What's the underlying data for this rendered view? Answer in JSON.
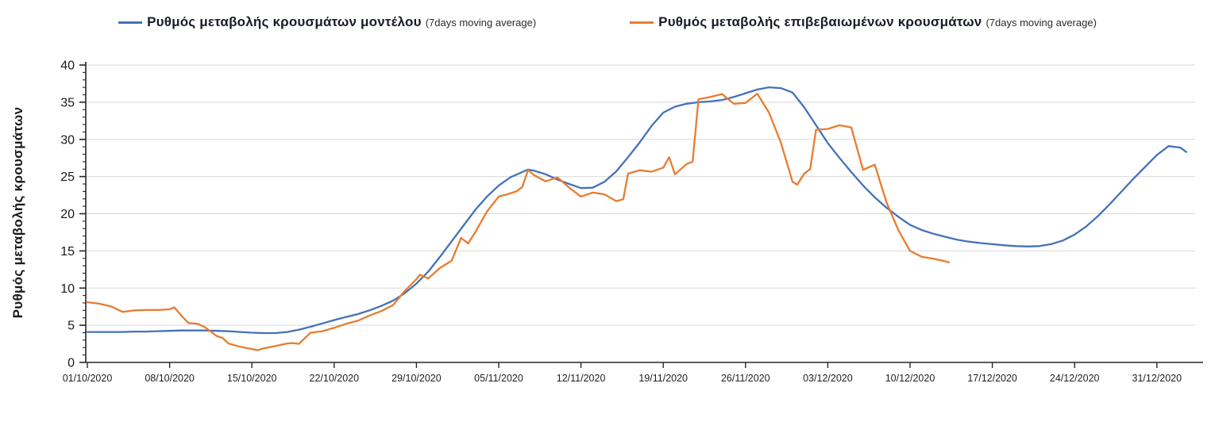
{
  "legend": {
    "items": [
      {
        "label": "Ρυθμός μεταβολής κρουσμάτων μοντέλου",
        "suffix": "(7days moving average)",
        "color": "#4472b8"
      },
      {
        "label": "Ρυθμός μεταβολής επιβεβαιωμένων κρουσμάτων",
        "suffix": "(7days moving average)",
        "color": "#e87c30"
      }
    ]
  },
  "y_axis": {
    "title": "Ρυθμός μεταβολής κρουσμάτων",
    "min": 0,
    "max": 40,
    "major_step": 5,
    "minor_step": 1,
    "tick_labels": [
      "0",
      "5",
      "10",
      "15",
      "20",
      "25",
      "30",
      "35",
      "40"
    ]
  },
  "x_axis": {
    "tick_labels": [
      "01/10/2020",
      "08/10/2020",
      "15/10/2020",
      "22/10/2020",
      "29/10/2020",
      "05/11/2020",
      "12/11/2020",
      "19/11/2020",
      "26/11/2020",
      "03/12/2020",
      "10/12/2020",
      "17/12/2020",
      "24/12/2020",
      "31/12/2020"
    ],
    "tick_day_offsets": [
      0,
      7,
      14,
      21,
      28,
      35,
      42,
      49,
      56,
      63,
      70,
      77,
      84,
      91
    ]
  },
  "chart_data": {
    "type": "line",
    "title": "",
    "xlabel": "",
    "ylabel": "Ρυθμός μεταβολής κρουσμάτων",
    "x_unit": "days since 01/10/2020",
    "ylim": [
      0,
      40
    ],
    "grid": "horizontal",
    "legend_position": "top",
    "series": [
      {
        "name": "Ρυθμός μεταβολής κρουσμάτων μοντέλου (7days moving average)",
        "color": "#4472b8",
        "points": [
          [
            0,
            4.1
          ],
          [
            1,
            4.1
          ],
          [
            2,
            4.1
          ],
          [
            3,
            4.1
          ],
          [
            4,
            4.15
          ],
          [
            5,
            4.15
          ],
          [
            6,
            4.2
          ],
          [
            7,
            4.25
          ],
          [
            8,
            4.3
          ],
          [
            9,
            4.3
          ],
          [
            10,
            4.3
          ],
          [
            11,
            4.25
          ],
          [
            12,
            4.2
          ],
          [
            13,
            4.1
          ],
          [
            14,
            4.0
          ],
          [
            15,
            3.95
          ],
          [
            16,
            3.95
          ],
          [
            17,
            4.1
          ],
          [
            18,
            4.4
          ],
          [
            19,
            4.8
          ],
          [
            20,
            5.25
          ],
          [
            21,
            5.7
          ],
          [
            22,
            6.1
          ],
          [
            23,
            6.5
          ],
          [
            24,
            7.0
          ],
          [
            25,
            7.6
          ],
          [
            26,
            8.3
          ],
          [
            27,
            9.3
          ],
          [
            28,
            10.6
          ],
          [
            29,
            12.2
          ],
          [
            30,
            14.2
          ],
          [
            31,
            16.3
          ],
          [
            32,
            18.4
          ],
          [
            33,
            20.5
          ],
          [
            34,
            22.3
          ],
          [
            35,
            23.8
          ],
          [
            36,
            24.9
          ],
          [
            37,
            25.6
          ],
          [
            37.5,
            25.95
          ],
          [
            38,
            25.8
          ],
          [
            39,
            25.3
          ],
          [
            40,
            24.6
          ],
          [
            41,
            24.0
          ],
          [
            42,
            23.45
          ],
          [
            43,
            23.5
          ],
          [
            44,
            24.3
          ],
          [
            45,
            25.7
          ],
          [
            46,
            27.6
          ],
          [
            47,
            29.6
          ],
          [
            48,
            31.8
          ],
          [
            49,
            33.6
          ],
          [
            50,
            34.4
          ],
          [
            51,
            34.8
          ],
          [
            52,
            35.0
          ],
          [
            53,
            35.1
          ],
          [
            54,
            35.3
          ],
          [
            55,
            35.7
          ],
          [
            56,
            36.2
          ],
          [
            57,
            36.7
          ],
          [
            58,
            37.0
          ],
          [
            59,
            36.9
          ],
          [
            60,
            36.3
          ],
          [
            61,
            34.3
          ],
          [
            62,
            31.9
          ],
          [
            63,
            29.5
          ],
          [
            64,
            27.5
          ],
          [
            65,
            25.6
          ],
          [
            66,
            23.8
          ],
          [
            67,
            22.2
          ],
          [
            68,
            20.8
          ],
          [
            69,
            19.6
          ],
          [
            70,
            18.5
          ],
          [
            71,
            17.8
          ],
          [
            72,
            17.3
          ],
          [
            73,
            16.9
          ],
          [
            74,
            16.5
          ],
          [
            75,
            16.25
          ],
          [
            76,
            16.05
          ],
          [
            77,
            15.9
          ],
          [
            78,
            15.75
          ],
          [
            79,
            15.65
          ],
          [
            80,
            15.6
          ],
          [
            81,
            15.65
          ],
          [
            82,
            15.9
          ],
          [
            83,
            16.4
          ],
          [
            84,
            17.2
          ],
          [
            85,
            18.3
          ],
          [
            86,
            19.7
          ],
          [
            87,
            21.3
          ],
          [
            88,
            23.0
          ],
          [
            89,
            24.7
          ],
          [
            90,
            26.3
          ],
          [
            91,
            27.9
          ],
          [
            92,
            29.1
          ],
          [
            93,
            28.9
          ],
          [
            93.5,
            28.3
          ]
        ]
      },
      {
        "name": "Ρυθμός μεταβολής επιβεβαιωμένων κρουσμάτων (7days moving average)",
        "color": "#e87c30",
        "points": [
          [
            0,
            8.1
          ],
          [
            1,
            7.9
          ],
          [
            2,
            7.55
          ],
          [
            3,
            6.8
          ],
          [
            4,
            7.0
          ],
          [
            5,
            7.05
          ],
          [
            6,
            7.05
          ],
          [
            7,
            7.15
          ],
          [
            7.4,
            7.4
          ],
          [
            8,
            6.3
          ],
          [
            8.6,
            5.3
          ],
          [
            9,
            5.25
          ],
          [
            9.4,
            5.2
          ],
          [
            10,
            4.75
          ],
          [
            11,
            3.55
          ],
          [
            11.5,
            3.3
          ],
          [
            12,
            2.55
          ],
          [
            13,
            2.1
          ],
          [
            14,
            1.8
          ],
          [
            14.5,
            1.65
          ],
          [
            15,
            1.9
          ],
          [
            16,
            2.2
          ],
          [
            17,
            2.55
          ],
          [
            17.5,
            2.6
          ],
          [
            18,
            2.5
          ],
          [
            19,
            4.0
          ],
          [
            20,
            4.2
          ],
          [
            21,
            4.65
          ],
          [
            22,
            5.2
          ],
          [
            23,
            5.6
          ],
          [
            24,
            6.3
          ],
          [
            25,
            6.9
          ],
          [
            26,
            7.7
          ],
          [
            27,
            9.6
          ],
          [
            28,
            11.2
          ],
          [
            28.3,
            11.8
          ],
          [
            29,
            11.3
          ],
          [
            30,
            12.7
          ],
          [
            31,
            13.7
          ],
          [
            31.8,
            16.75
          ],
          [
            32.4,
            16.0
          ],
          [
            33,
            17.5
          ],
          [
            34,
            20.3
          ],
          [
            35,
            22.3
          ],
          [
            35.7,
            22.6
          ],
          [
            36.5,
            23.0
          ],
          [
            37,
            23.6
          ],
          [
            37.5,
            25.9
          ],
          [
            38,
            25.2
          ],
          [
            39,
            24.35
          ],
          [
            40,
            24.9
          ],
          [
            41,
            23.5
          ],
          [
            42,
            22.3
          ],
          [
            43,
            22.85
          ],
          [
            44,
            22.6
          ],
          [
            45,
            21.7
          ],
          [
            45.6,
            21.95
          ],
          [
            46,
            25.4
          ],
          [
            47,
            25.85
          ],
          [
            48,
            25.65
          ],
          [
            49,
            26.2
          ],
          [
            49.5,
            27.6
          ],
          [
            50,
            25.3
          ],
          [
            51,
            26.7
          ],
          [
            51.5,
            27.0
          ],
          [
            52,
            35.4
          ],
          [
            53,
            35.7
          ],
          [
            54,
            36.1
          ],
          [
            55,
            34.8
          ],
          [
            56,
            34.9
          ],
          [
            57,
            36.15
          ],
          [
            58,
            33.6
          ],
          [
            59,
            29.6
          ],
          [
            60,
            24.3
          ],
          [
            60.4,
            23.9
          ],
          [
            61,
            25.4
          ],
          [
            61.5,
            26.0
          ],
          [
            62,
            31.3
          ],
          [
            63,
            31.4
          ],
          [
            64,
            31.9
          ],
          [
            65,
            31.6
          ],
          [
            66,
            25.9
          ],
          [
            67,
            26.6
          ],
          [
            68,
            21.5
          ],
          [
            69,
            17.8
          ],
          [
            70,
            15.0
          ],
          [
            71,
            14.2
          ],
          [
            72,
            13.95
          ],
          [
            73,
            13.6
          ],
          [
            73.3,
            13.45
          ]
        ]
      }
    ]
  },
  "geometry_labels": {
    "note": "line chart, two series, weekly x ticks, horizontal gridlines"
  }
}
